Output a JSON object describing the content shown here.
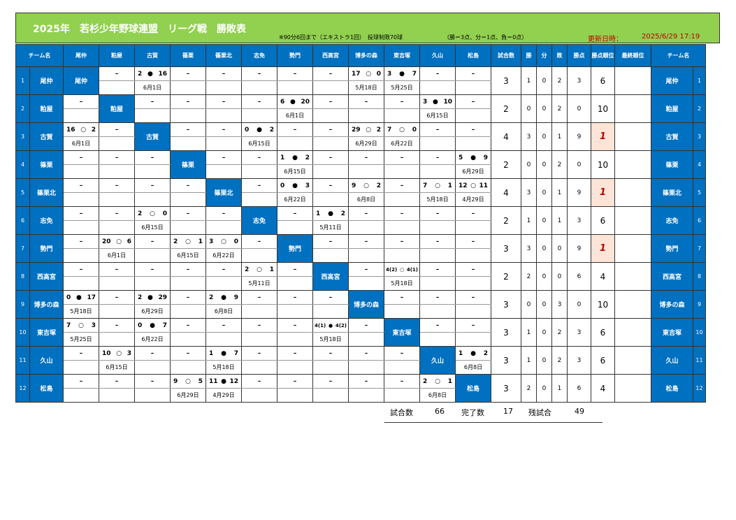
{
  "header": {
    "title": "2025年　若杉少年野球連盟　リーグ戦　勝敗表",
    "rules": "※90分6回まで（エキストラ1回）　投球制限70球",
    "points": "（勝＝3点、分＝1点、負＝0点）",
    "updated_label": "更新日時：",
    "updated_value": "2025/6/29 17:19"
  },
  "columns": {
    "team": "チーム名",
    "games": "試合数",
    "win": "勝",
    "draw": "分",
    "loss": "敗",
    "points": "勝点",
    "rank": "勝点順位",
    "final": "最終順位",
    "team_right": "チーム名"
  },
  "teams": [
    "尾仲",
    "粕屋",
    "古賀",
    "篠栗",
    "篠栗北",
    "志免",
    "勢門",
    "西高宮",
    "博多の森",
    "東吉塚",
    "久山",
    "松島"
  ],
  "rows": [
    {
      "no": "1",
      "cells": [
        null,
        [
          "–",
          ""
        ],
        [
          "2 ● 16",
          "6月1日"
        ],
        [
          "–",
          ""
        ],
        [
          "–",
          ""
        ],
        [
          "–",
          ""
        ],
        [
          "–",
          ""
        ],
        [
          "–",
          ""
        ],
        [
          "17 ○ 0",
          "5月18日"
        ],
        [
          "3 ● 7",
          "5月25日"
        ],
        [
          "–",
          ""
        ],
        [
          "–",
          ""
        ]
      ],
      "games": "3",
      "win": "1",
      "draw": "0",
      "loss": "2",
      "pts": "3",
      "rank": "6",
      "hl": false
    },
    {
      "no": "2",
      "cells": [
        [
          "–",
          ""
        ],
        null,
        [
          "–",
          ""
        ],
        [
          "–",
          ""
        ],
        [
          "–",
          ""
        ],
        [
          "–",
          ""
        ],
        [
          "6 ● 20",
          "6月1日"
        ],
        [
          "–",
          ""
        ],
        [
          "–",
          ""
        ],
        [
          "–",
          ""
        ],
        [
          "3 ● 10",
          "6月15日"
        ],
        [
          "–",
          ""
        ]
      ],
      "games": "2",
      "win": "0",
      "draw": "0",
      "loss": "2",
      "pts": "0",
      "rank": "10",
      "hl": false
    },
    {
      "no": "3",
      "cells": [
        [
          "16 ○ 2",
          "6月1日"
        ],
        [
          "–",
          ""
        ],
        null,
        [
          "–",
          ""
        ],
        [
          "–",
          ""
        ],
        [
          "0 ● 2",
          "6月15日"
        ],
        [
          "–",
          ""
        ],
        [
          "–",
          ""
        ],
        [
          "29 ○ 2",
          "6月29日"
        ],
        [
          "7 ○ 0",
          "6月22日"
        ],
        [
          "–",
          ""
        ],
        [
          "–",
          ""
        ]
      ],
      "games": "4",
      "win": "3",
      "draw": "0",
      "loss": "1",
      "pts": "9",
      "rank": "1",
      "hl": true
    },
    {
      "no": "4",
      "cells": [
        [
          "–",
          ""
        ],
        [
          "–",
          ""
        ],
        [
          "–",
          ""
        ],
        null,
        [
          "–",
          ""
        ],
        [
          "–",
          ""
        ],
        [
          "1 ● 2",
          "6月15日"
        ],
        [
          "–",
          ""
        ],
        [
          "–",
          ""
        ],
        [
          "–",
          ""
        ],
        [
          "–",
          ""
        ],
        [
          "5 ● 9",
          "6月29日"
        ]
      ],
      "games": "2",
      "win": "0",
      "draw": "0",
      "loss": "2",
      "pts": "0",
      "rank": "10",
      "hl": false
    },
    {
      "no": "5",
      "cells": [
        [
          "–",
          ""
        ],
        [
          "–",
          ""
        ],
        [
          "–",
          ""
        ],
        [
          "–",
          ""
        ],
        null,
        [
          "–",
          ""
        ],
        [
          "0 ● 3",
          "6月22日"
        ],
        [
          "–",
          ""
        ],
        [
          "9 ○ 2",
          "6月8日"
        ],
        [
          "–",
          ""
        ],
        [
          "7 ○ 1",
          "5月18日"
        ],
        [
          "12 ○ 11",
          "4月29日"
        ]
      ],
      "games": "4",
      "win": "3",
      "draw": "0",
      "loss": "1",
      "pts": "9",
      "rank": "1",
      "hl": true
    },
    {
      "no": "6",
      "cells": [
        [
          "–",
          ""
        ],
        [
          "–",
          ""
        ],
        [
          "2 ○ 0",
          "6月15日"
        ],
        [
          "–",
          ""
        ],
        [
          "–",
          ""
        ],
        null,
        [
          "–",
          ""
        ],
        [
          "1 ● 2",
          "5月11日"
        ],
        [
          "–",
          ""
        ],
        [
          "–",
          ""
        ],
        [
          "–",
          ""
        ],
        [
          "–",
          ""
        ]
      ],
      "games": "2",
      "win": "1",
      "draw": "0",
      "loss": "1",
      "pts": "3",
      "rank": "6",
      "hl": false
    },
    {
      "no": "7",
      "cells": [
        [
          "–",
          ""
        ],
        [
          "20 ○ 6",
          "6月1日"
        ],
        [
          "–",
          ""
        ],
        [
          "2 ○ 1",
          "6月15日"
        ],
        [
          "3 ○ 0",
          "6月22日"
        ],
        [
          "–",
          ""
        ],
        null,
        [
          "–",
          ""
        ],
        [
          "–",
          ""
        ],
        [
          "–",
          ""
        ],
        [
          "–",
          ""
        ],
        [
          "–",
          ""
        ]
      ],
      "games": "3",
      "win": "3",
      "draw": "0",
      "loss": "0",
      "pts": "9",
      "rank": "1",
      "hl": true
    },
    {
      "no": "8",
      "cells": [
        [
          "–",
          ""
        ],
        [
          "–",
          ""
        ],
        [
          "–",
          ""
        ],
        [
          "–",
          ""
        ],
        [
          "–",
          ""
        ],
        [
          "2 ○ 1",
          "5月11日"
        ],
        [
          "–",
          ""
        ],
        null,
        [
          "–",
          ""
        ],
        [
          "4(2) ○ 4(1)",
          "5月18日"
        ],
        [
          "–",
          ""
        ],
        [
          "–",
          ""
        ]
      ],
      "games": "2",
      "win": "2",
      "draw": "0",
      "loss": "0",
      "pts": "6",
      "rank": "4",
      "hl": false
    },
    {
      "no": "9",
      "cells": [
        [
          "0 ● 17",
          "5月18日"
        ],
        [
          "–",
          ""
        ],
        [
          "2 ● 29",
          "6月29日"
        ],
        [
          "–",
          ""
        ],
        [
          "2 ● 9",
          "6月8日"
        ],
        [
          "–",
          ""
        ],
        [
          "–",
          ""
        ],
        [
          "–",
          ""
        ],
        null,
        [
          "–",
          ""
        ],
        [
          "–",
          ""
        ],
        [
          "–",
          ""
        ]
      ],
      "games": "3",
      "win": "0",
      "draw": "0",
      "loss": "3",
      "pts": "0",
      "rank": "10",
      "hl": false
    },
    {
      "no": "10",
      "cells": [
        [
          "7 ○ 3",
          "5月25日"
        ],
        [
          "–",
          ""
        ],
        [
          "0 ● 7",
          "6月22日"
        ],
        [
          "–",
          ""
        ],
        [
          "–",
          ""
        ],
        [
          "–",
          ""
        ],
        [
          "–",
          ""
        ],
        [
          "4(1) ● 4(2)",
          "5月18日"
        ],
        [
          "–",
          ""
        ],
        null,
        [
          "–",
          ""
        ],
        [
          "–",
          ""
        ]
      ],
      "games": "3",
      "win": "1",
      "draw": "0",
      "loss": "2",
      "pts": "3",
      "rank": "6",
      "hl": false
    },
    {
      "no": "11",
      "cells": [
        [
          "–",
          ""
        ],
        [
          "10 ○ 3",
          "6月15日"
        ],
        [
          "–",
          ""
        ],
        [
          "–",
          ""
        ],
        [
          "1 ● 7",
          "5月18日"
        ],
        [
          "–",
          ""
        ],
        [
          "–",
          ""
        ],
        [
          "–",
          ""
        ],
        [
          "–",
          ""
        ],
        [
          "–",
          ""
        ],
        null,
        [
          "1 ● 2",
          "6月8日"
        ]
      ],
      "games": "3",
      "win": "1",
      "draw": "0",
      "loss": "2",
      "pts": "3",
      "rank": "6",
      "hl": false
    },
    {
      "no": "12",
      "cells": [
        [
          "–",
          ""
        ],
        [
          "–",
          ""
        ],
        [
          "–",
          ""
        ],
        [
          "9 ○ 5",
          "6月29日"
        ],
        [
          "11 ● 12",
          "4月29日"
        ],
        [
          "–",
          ""
        ],
        [
          "–",
          ""
        ],
        [
          "–",
          ""
        ],
        [
          "–",
          ""
        ],
        [
          "–",
          ""
        ],
        [
          "2 ○ 1",
          "6月8日"
        ],
        null
      ],
      "games": "3",
      "win": "2",
      "draw": "0",
      "loss": "1",
      "pts": "6",
      "rank": "4",
      "hl": false
    }
  ],
  "summary": {
    "total_label": "試合数",
    "total": "66",
    "done_label": "完了数",
    "done": "17",
    "remain_label": "残試合",
    "remain": "49"
  }
}
